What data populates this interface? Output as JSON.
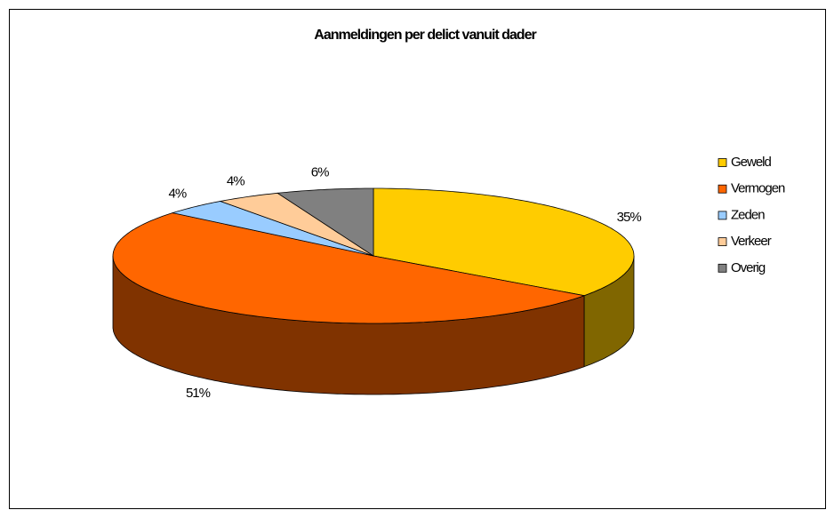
{
  "chart_data": {
    "type": "pie3d",
    "title": "Aanmeldingen per delict vanuit dader",
    "categories": [
      "Geweld",
      "Vermogen",
      "Zeden",
      "Verkeer",
      "Overig"
    ],
    "values": [
      35,
      51,
      4,
      4,
      6
    ],
    "value_labels": [
      "35%",
      "51%",
      "4%",
      "4%",
      "6%"
    ],
    "colors": [
      "#ffcc00",
      "#ff6600",
      "#99ccff",
      "#ffcc99",
      "#808080"
    ],
    "legend": "right"
  }
}
